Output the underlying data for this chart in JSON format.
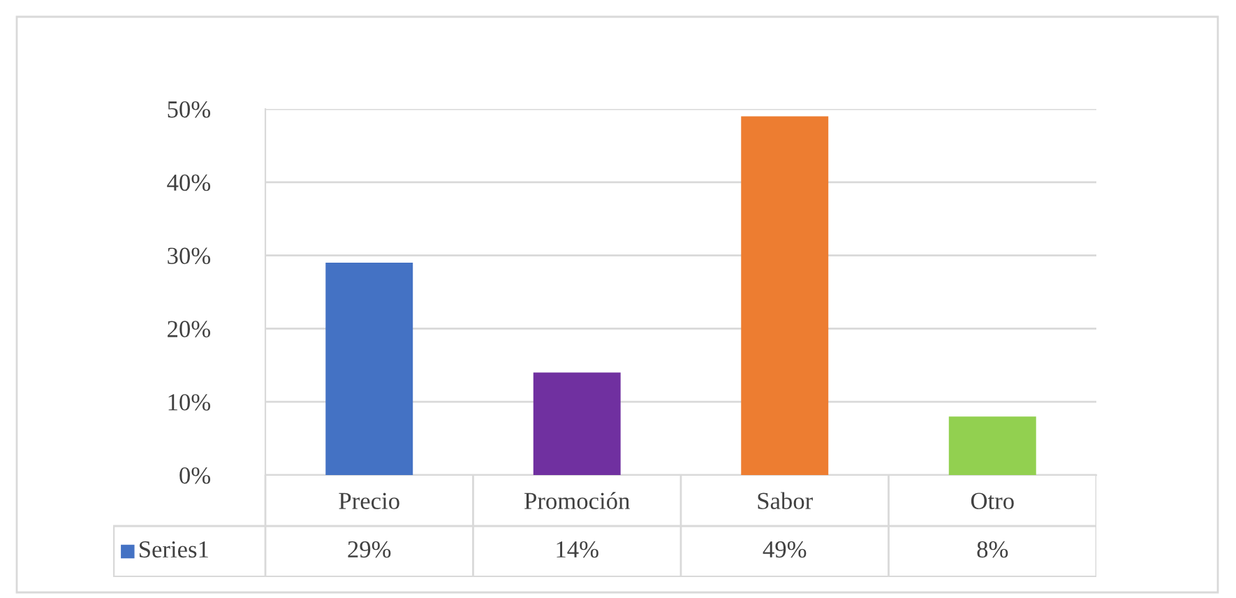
{
  "chart_data": {
    "type": "bar",
    "categories": [
      "Precio",
      "Promoción",
      "Sabor",
      "Otro"
    ],
    "series": [
      {
        "name": "Series1",
        "color": "#4472c4",
        "colors": [
          "#4472c4",
          "#7030a0",
          "#ed7d31",
          "#92d050"
        ],
        "values": [
          29,
          14,
          49,
          8
        ],
        "value_labels": [
          "29%",
          "14%",
          "49%",
          "8%"
        ]
      }
    ],
    "ylim": [
      0,
      50
    ],
    "yticks": [
      {
        "value": 0,
        "label": "0%"
      },
      {
        "value": 10,
        "label": "10%"
      },
      {
        "value": 20,
        "label": "20%"
      },
      {
        "value": 30,
        "label": "30%"
      },
      {
        "value": 40,
        "label": "40%"
      },
      {
        "value": 50,
        "label": "50%"
      }
    ],
    "grid": "y",
    "legend": "bottom"
  }
}
